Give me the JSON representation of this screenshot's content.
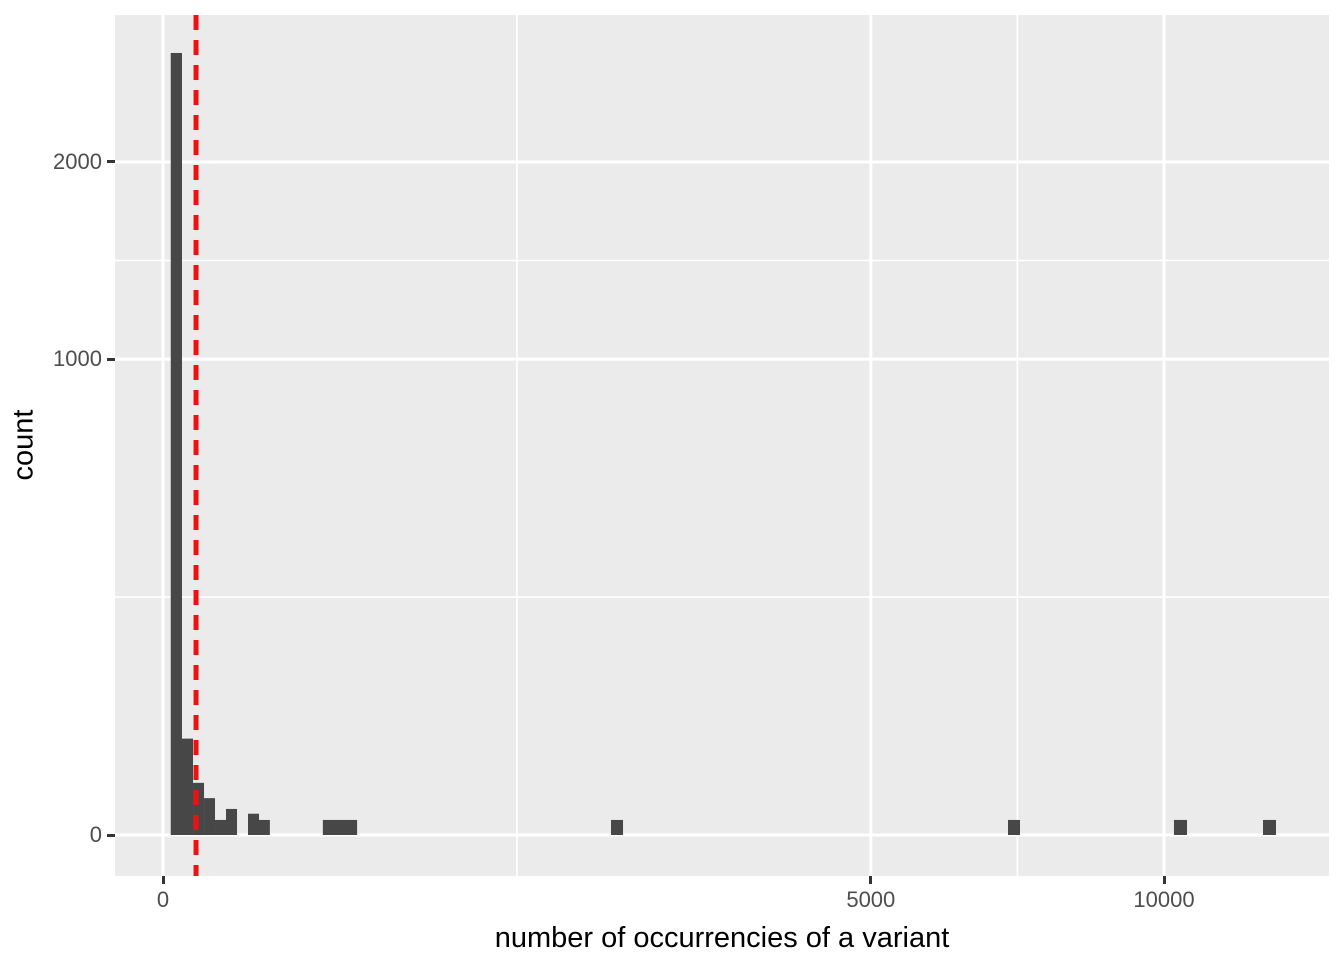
{
  "figure": {
    "background": "#FFFFFF",
    "panel_background": "#EBEBEB",
    "grid_color": "#FFFFFF",
    "bar_color": "#474747",
    "tick_color": "#333333",
    "tick_label_color": "#4D4D4D",
    "axis_title_color": "#000000"
  },
  "chart_data": {
    "type": "bar",
    "subtype": "histogram",
    "title": "",
    "xlabel": "number of occurrencies of a variant",
    "ylabel": "count",
    "x_scale": "sqrt",
    "y_scale": "sqrt",
    "xlim": [
      0,
      13600
    ],
    "ylim": [
      0,
      2975
    ],
    "grid": "major-and-minor, white on grey panel, minor at sqrt-midpoints",
    "legend": "none",
    "x_ticks": [
      {
        "value": 0,
        "label": "0"
      },
      {
        "value": 5000,
        "label": "5000"
      },
      {
        "value": 10000,
        "label": "10000"
      }
    ],
    "y_ticks": [
      {
        "value": 0,
        "label": "0"
      },
      {
        "value": 1000,
        "label": "1000"
      },
      {
        "value": 2000,
        "label": "2000"
      }
    ],
    "bins": [
      {
        "x_min": 0.6,
        "x_max": 3.6,
        "count": 2700
      },
      {
        "x_min": 3.6,
        "x_max": 9,
        "count": 41
      },
      {
        "x_min": 9,
        "x_max": 16.8,
        "count": 12
      },
      {
        "x_min": 16.8,
        "x_max": 27,
        "count": 6
      },
      {
        "x_min": 27,
        "x_max": 39.6,
        "count": 1
      },
      {
        "x_min": 39.6,
        "x_max": 54.7,
        "count": 3
      },
      {
        "x_min": 72.1,
        "x_max": 92,
        "count": 2
      },
      {
        "x_min": 92,
        "x_max": 114,
        "count": 1
      },
      {
        "x_min": 255,
        "x_max": 376,
        "count": 1
      },
      {
        "x_min": 2003,
        "x_max": 2112,
        "count": 1
      },
      {
        "x_min": 7126,
        "x_max": 7330,
        "count": 1
      },
      {
        "x_min": 10200,
        "x_max": 10465,
        "count": 1
      },
      {
        "x_min": 12076,
        "x_max": 12363,
        "count": 1
      }
    ],
    "vline": {
      "x": 10.9,
      "color": "#EE1111",
      "style": "dashed"
    }
  }
}
